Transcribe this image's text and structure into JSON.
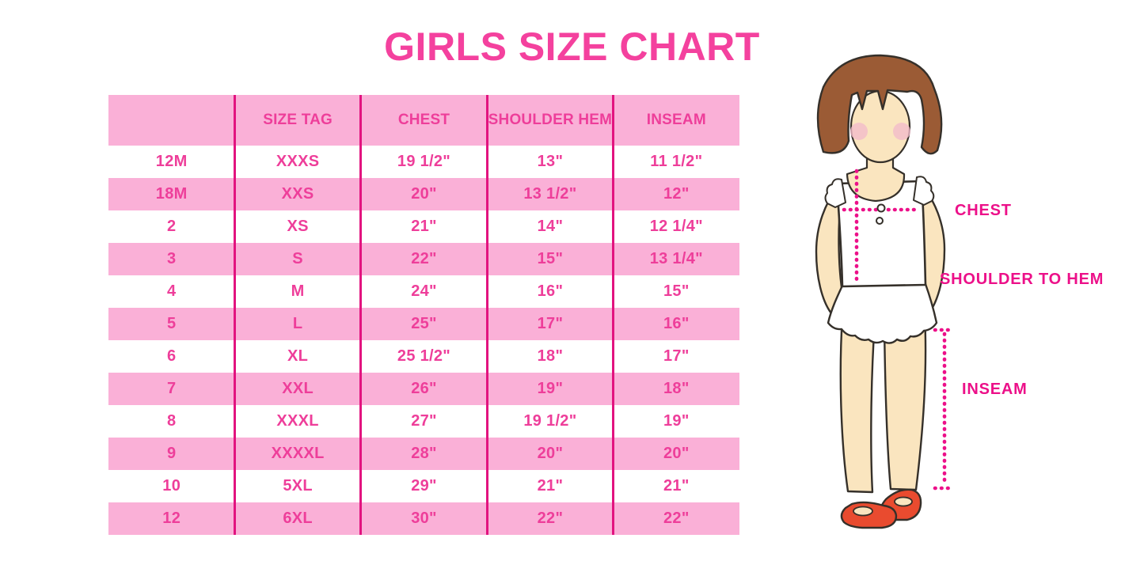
{
  "title": "GIRLS SIZE CHART",
  "colors": {
    "title_pink": "#F4419E",
    "cell_text_pink": "#EE3E9A",
    "row_pink": "#FAB0D7",
    "divider_pink": "#E2137F",
    "accent_magenta": "#EC1089",
    "hair_brown": "#9B5B35",
    "skin": "#FAE5BF",
    "blush": "#F2BCCB",
    "shoe_red": "#E94B2F",
    "outline": "#35302A"
  },
  "chart_data": {
    "type": "table",
    "title": "GIRLS SIZE CHART",
    "columns": [
      "",
      "SIZE TAG",
      "CHEST",
      "SHOULDER HEM",
      "INSEAM"
    ],
    "rows": [
      [
        "12M",
        "XXXS",
        "19 1/2\"",
        "13\"",
        "11 1/2\""
      ],
      [
        "18M",
        "XXS",
        "20\"",
        "13 1/2\"",
        "12\""
      ],
      [
        "2",
        "XS",
        "21\"",
        "14\"",
        "12 1/4\""
      ],
      [
        "3",
        "S",
        "22\"",
        "15\"",
        "13 1/4\""
      ],
      [
        "4",
        "M",
        "24\"",
        "16\"",
        "15\""
      ],
      [
        "5",
        "L",
        "25\"",
        "17\"",
        "16\""
      ],
      [
        "6",
        "XL",
        "25 1/2\"",
        "18\"",
        "17\""
      ],
      [
        "7",
        "XXL",
        "26\"",
        "19\"",
        "18\""
      ],
      [
        "8",
        "XXXL",
        "27\"",
        "19 1/2\"",
        "19\""
      ],
      [
        "9",
        "XXXXL",
        "28\"",
        "20\"",
        "20\""
      ],
      [
        "10",
        "5XL",
        "29\"",
        "21\"",
        "21\""
      ],
      [
        "12",
        "6XL",
        "30\"",
        "22\"",
        "22\""
      ]
    ],
    "layout_hints": {
      "header_background": "pink",
      "row_striping": "white/pink alternating starting white",
      "column_dividers": "magenta vertical lines, no outer border"
    }
  },
  "figure": {
    "description": "illustrated girl with brown bob hair, white sleeveless ruffle top, white scalloped skirt, red shoes",
    "labels": {
      "chest": "CHEST",
      "shoulder_to_hem": "SHOULDER TO HEM",
      "inseam": "INSEAM"
    }
  }
}
